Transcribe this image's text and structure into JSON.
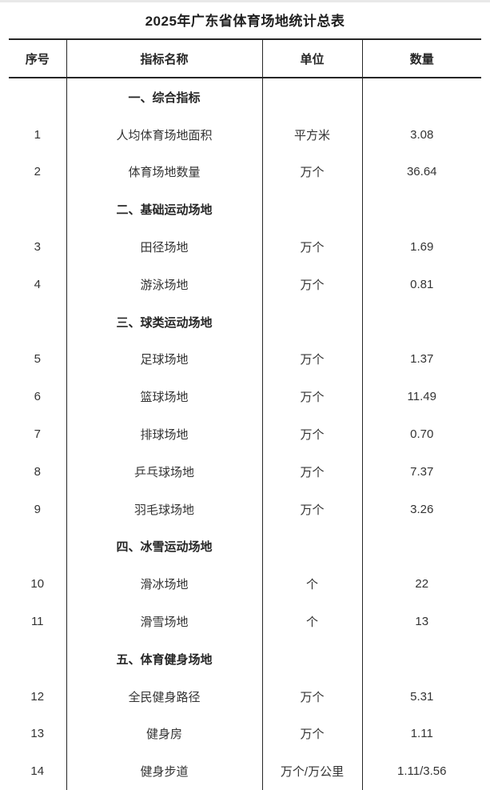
{
  "page": {
    "title": "2025年广东省体育场地统计总表"
  },
  "colors": {
    "line": "#262626",
    "text": "#333333",
    "top_strip": "#e8e8e8",
    "background": "#ffffff"
  },
  "table": {
    "columns": [
      "序号",
      "指标名称",
      "单位",
      "数量"
    ],
    "rows": [
      {
        "type": "section",
        "no": "",
        "name": "一、综合指标",
        "unit": "",
        "value": ""
      },
      {
        "type": "data",
        "no": "1",
        "name": "人均体育场地面积",
        "unit": "平方米",
        "value": "3.08"
      },
      {
        "type": "data",
        "no": "2",
        "name": "体育场地数量",
        "unit": "万个",
        "value": "36.64"
      },
      {
        "type": "section",
        "no": "",
        "name": "二、基础运动场地",
        "unit": "",
        "value": ""
      },
      {
        "type": "data",
        "no": "3",
        "name": "田径场地",
        "unit": "万个",
        "value": "1.69"
      },
      {
        "type": "data",
        "no": "4",
        "name": "游泳场地",
        "unit": "万个",
        "value": "0.81"
      },
      {
        "type": "section",
        "no": "",
        "name": "三、球类运动场地",
        "unit": "",
        "value": ""
      },
      {
        "type": "data",
        "no": "5",
        "name": "足球场地",
        "unit": "万个",
        "value": "1.37"
      },
      {
        "type": "data",
        "no": "6",
        "name": "篮球场地",
        "unit": "万个",
        "value": "11.49"
      },
      {
        "type": "data",
        "no": "7",
        "name": "排球场地",
        "unit": "万个",
        "value": "0.70"
      },
      {
        "type": "data",
        "no": "8",
        "name": "乒乓球场地",
        "unit": "万个",
        "value": "7.37"
      },
      {
        "type": "data",
        "no": "9",
        "name": "羽毛球场地",
        "unit": "万个",
        "value": "3.26"
      },
      {
        "type": "section",
        "no": "",
        "name": "四、冰雪运动场地",
        "unit": "",
        "value": ""
      },
      {
        "type": "data",
        "no": "10",
        "name": "滑冰场地",
        "unit": "个",
        "value": "22"
      },
      {
        "type": "data",
        "no": "11",
        "name": "滑雪场地",
        "unit": "个",
        "value": "13"
      },
      {
        "type": "section",
        "no": "",
        "name": "五、体育健身场地",
        "unit": "",
        "value": ""
      },
      {
        "type": "data",
        "no": "12",
        "name": "全民健身路径",
        "unit": "万个",
        "value": "5.31"
      },
      {
        "type": "data",
        "no": "13",
        "name": "健身房",
        "unit": "万个",
        "value": "1.11"
      },
      {
        "type": "data",
        "no": "14",
        "name": "健身步道",
        "unit": "万个/万公里",
        "value": "1.11/3.56"
      }
    ]
  }
}
